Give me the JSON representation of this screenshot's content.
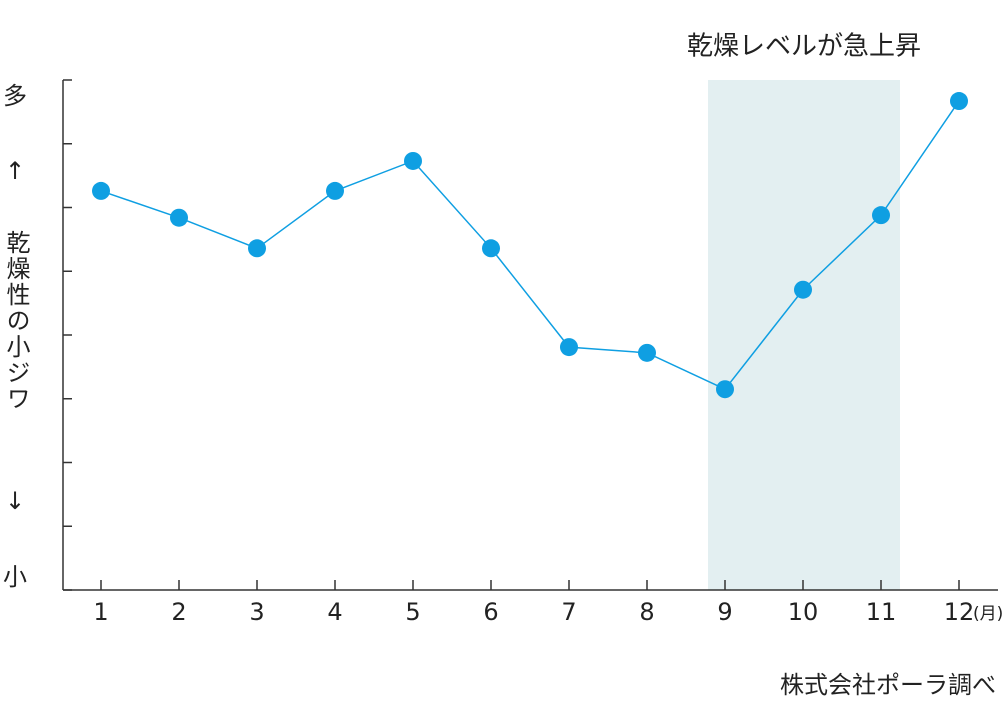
{
  "chart_data": {
    "type": "line",
    "annotation": "乾燥レベルが急上昇",
    "highlight_from": "9",
    "highlight_to": "11",
    "highlight_color": "#e3eff1",
    "y_label_top": "多",
    "y_arrow_up": "↑",
    "y_label": "乾燥性の小ジワ",
    "y_arrow_down": "↓",
    "y_label_bottom": "小",
    "categories": [
      "1",
      "2",
      "3",
      "4",
      "5",
      "6",
      "7",
      "8",
      "9",
      "10",
      "11",
      "12"
    ],
    "x_unit": "(月)",
    "series": [
      {
        "color": "#0f9fe2",
        "values": [
          6.26,
          5.84,
          5.36,
          6.26,
          6.73,
          5.36,
          3.81,
          3.72,
          3.15,
          4.71,
          5.88,
          7.67
        ]
      }
    ],
    "ylim": [
      0,
      8
    ],
    "yticks": [
      0,
      1,
      2,
      3,
      4,
      5,
      6,
      7,
      8
    ],
    "source": "株式会社ポーラ調べ"
  }
}
